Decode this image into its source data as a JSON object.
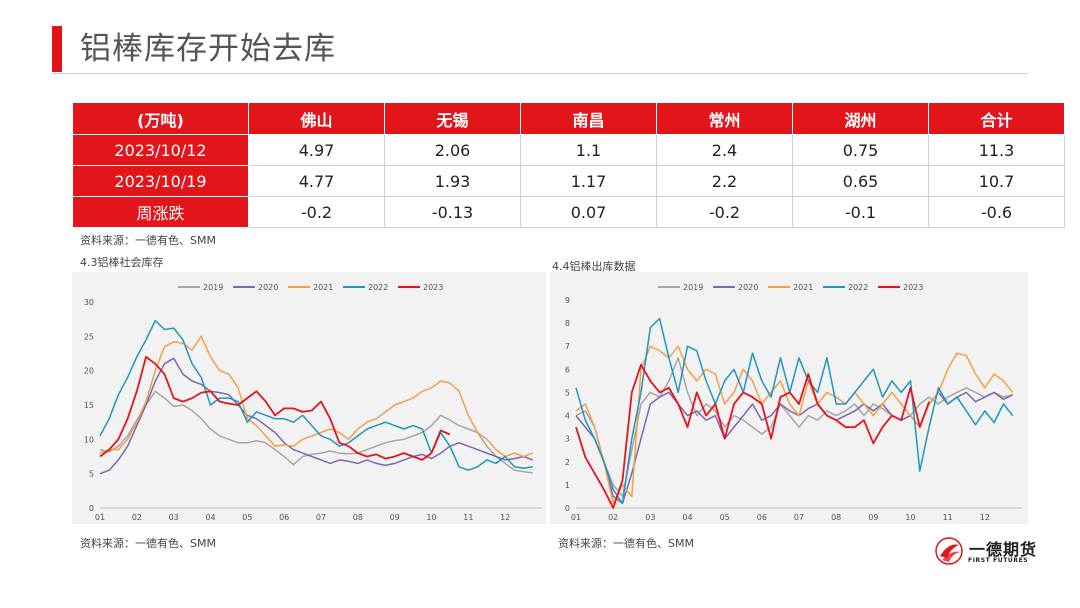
{
  "page": {
    "title": "铝棒库存开始去库"
  },
  "table": {
    "headers": [
      "(万吨)",
      "佛山",
      "无锡",
      "南昌",
      "常州",
      "湖州",
      "合计"
    ],
    "rows": [
      [
        "2023/10/12",
        "4.97",
        "2.06",
        "1.1",
        "2.4",
        "0.75",
        "11.3"
      ],
      [
        "2023/10/19",
        "4.77",
        "1.93",
        "1.17",
        "2.2",
        "0.65",
        "10.7"
      ],
      [
        "周涨跌",
        "-0.2",
        "-0.13",
        "0.07",
        "-0.2",
        "-0.1",
        "-0.6"
      ]
    ]
  },
  "source_text": "资料来源：一德有色、SMM",
  "logo": {
    "name": "一德期货",
    "sub": "FIRST FUTURES"
  },
  "colors": {
    "accent": "#e4141b",
    "2019": "#a6a6a6",
    "2020": "#7b68b0",
    "2021": "#f0a04b",
    "2022": "#1f96c0",
    "2023": "#e4141b"
  },
  "chart_data": [
    {
      "type": "line",
      "title": "4.3铝棒社会库存",
      "xlabel": "",
      "ylabel": "",
      "x_ticks": [
        "01",
        "02",
        "03",
        "04",
        "05",
        "06",
        "07",
        "08",
        "09",
        "10",
        "11",
        "12"
      ],
      "xlim": [
        1,
        13
      ],
      "ylim": [
        0,
        30
      ],
      "y_ticks": [
        0,
        5,
        10,
        15,
        20,
        25,
        30
      ],
      "legend_position": "top",
      "series": [
        {
          "name": "2019",
          "x": [
            1.0,
            1.25,
            1.5,
            1.75,
            2.0,
            2.25,
            2.5,
            2.75,
            3.0,
            3.25,
            3.5,
            3.75,
            4.0,
            4.25,
            4.5,
            4.75,
            5.0,
            5.25,
            5.5,
            5.75,
            6.0,
            6.25,
            6.5,
            6.75,
            7.0,
            7.25,
            7.5,
            7.75,
            8.0,
            8.25,
            8.5,
            8.75,
            9.0,
            9.25,
            9.5,
            9.75,
            10.0,
            10.25,
            10.5,
            10.75,
            11.0,
            11.25,
            11.5,
            11.75,
            12.0,
            12.25,
            12.5,
            12.75
          ],
          "values": [
            8.5,
            8.2,
            9.0,
            10.5,
            12.8,
            15.0,
            17.0,
            16.0,
            14.8,
            15.0,
            14.2,
            13.0,
            11.5,
            10.5,
            10.0,
            9.5,
            9.5,
            9.8,
            9.5,
            8.5,
            7.5,
            6.3,
            7.5,
            7.8,
            8.0,
            8.3,
            8.0,
            7.9,
            8.0,
            8.5,
            9.0,
            9.5,
            9.8,
            10.0,
            10.5,
            11.0,
            12.0,
            13.5,
            12.8,
            12.0,
            11.5,
            11.0,
            9.0,
            7.5,
            6.5,
            5.5,
            5.3,
            5.1
          ]
        },
        {
          "name": "2020",
          "x": [
            1.0,
            1.25,
            1.5,
            1.75,
            2.0,
            2.25,
            2.5,
            2.75,
            3.0,
            3.25,
            3.5,
            3.75,
            4.0,
            4.25,
            4.5,
            4.75,
            5.0,
            5.25,
            5.5,
            5.75,
            6.0,
            6.25,
            6.5,
            6.75,
            7.0,
            7.25,
            7.5,
            7.75,
            8.0,
            8.25,
            8.5,
            8.75,
            9.0,
            9.25,
            9.5,
            9.75,
            10.0,
            10.25,
            10.5,
            10.75,
            11.0,
            11.25,
            11.5,
            11.75,
            12.0,
            12.25,
            12.5,
            12.75
          ],
          "values": [
            5.0,
            5.5,
            7.0,
            9.0,
            12.0,
            15.0,
            18.5,
            21.0,
            21.8,
            19.5,
            18.5,
            18.0,
            17.0,
            16.8,
            16.5,
            15.0,
            13.5,
            13.0,
            12.0,
            11.0,
            9.5,
            8.5,
            8.0,
            7.5,
            7.0,
            6.5,
            7.0,
            6.8,
            6.5,
            7.0,
            6.5,
            6.2,
            6.5,
            7.0,
            7.5,
            7.8,
            7.2,
            8.0,
            9.0,
            9.5,
            9.0,
            8.5,
            8.0,
            7.5,
            7.0,
            7.2,
            7.5,
            7.0
          ]
        },
        {
          "name": "2021",
          "x": [
            1.0,
            1.25,
            1.5,
            1.75,
            2.0,
            2.25,
            2.5,
            2.75,
            3.0,
            3.25,
            3.5,
            3.75,
            4.0,
            4.25,
            4.5,
            4.75,
            5.0,
            5.25,
            5.5,
            5.75,
            6.0,
            6.25,
            6.5,
            6.75,
            7.0,
            7.25,
            7.5,
            7.75,
            8.0,
            8.25,
            8.5,
            8.75,
            9.0,
            9.25,
            9.5,
            9.75,
            10.0,
            10.25,
            10.5,
            10.75,
            11.0,
            11.25,
            11.5,
            11.75,
            12.0,
            12.25,
            12.5,
            12.75
          ],
          "values": [
            8.0,
            8.5,
            8.5,
            10.0,
            12.5,
            15.5,
            20.0,
            23.5,
            24.2,
            24.0,
            23.0,
            25.0,
            22.0,
            20.0,
            19.5,
            17.5,
            13.0,
            12.0,
            10.5,
            9.0,
            9.2,
            9.0,
            10.0,
            10.5,
            11.0,
            11.5,
            11.0,
            10.0,
            11.5,
            12.5,
            13.0,
            14.0,
            15.0,
            15.5,
            16.0,
            17.0,
            17.5,
            18.5,
            18.2,
            17.0,
            13.5,
            11.0,
            10.0,
            8.5,
            7.5,
            8.0,
            7.5,
            8.0
          ]
        },
        {
          "name": "2022",
          "x": [
            1.0,
            1.25,
            1.5,
            1.75,
            2.0,
            2.25,
            2.5,
            2.75,
            3.0,
            3.25,
            3.5,
            3.75,
            4.0,
            4.25,
            4.5,
            4.75,
            5.0,
            5.25,
            5.5,
            5.75,
            6.0,
            6.25,
            6.5,
            6.75,
            7.0,
            7.25,
            7.5,
            7.75,
            8.0,
            8.25,
            8.5,
            8.75,
            9.0,
            9.25,
            9.5,
            9.75,
            10.0,
            10.25,
            10.5,
            10.75,
            11.0,
            11.25,
            11.5,
            11.75,
            12.0,
            12.25,
            12.5,
            12.75
          ],
          "values": [
            10.5,
            13.0,
            16.5,
            19.0,
            22.0,
            24.5,
            27.3,
            26.0,
            26.2,
            24.5,
            21.0,
            19.0,
            15.0,
            16.0,
            16.0,
            15.5,
            12.5,
            14.0,
            13.5,
            13.0,
            13.0,
            12.5,
            13.5,
            12.0,
            10.5,
            10.0,
            9.0,
            9.5,
            10.5,
            11.5,
            12.0,
            12.5,
            12.0,
            11.5,
            12.0,
            11.5,
            8.0,
            11.0,
            9.0,
            6.0,
            5.5,
            6.0,
            7.0,
            6.5,
            7.5,
            6.0,
            5.8,
            6.0
          ]
        },
        {
          "name": "2023",
          "x": [
            1.0,
            1.25,
            1.5,
            1.75,
            2.0,
            2.25,
            2.5,
            2.75,
            3.0,
            3.25,
            3.5,
            3.75,
            4.0,
            4.25,
            4.5,
            4.75,
            5.0,
            5.25,
            5.5,
            5.75,
            6.0,
            6.25,
            6.5,
            6.75,
            7.0,
            7.25,
            7.5,
            7.75,
            8.0,
            8.25,
            8.5,
            8.75,
            9.0,
            9.25,
            9.5,
            9.75,
            10.0,
            10.25,
            10.5
          ],
          "values": [
            7.5,
            8.5,
            10.0,
            13.0,
            17.0,
            22.0,
            21.0,
            19.5,
            16.0,
            15.5,
            16.0,
            16.8,
            17.0,
            15.5,
            15.2,
            15.0,
            16.0,
            17.0,
            15.5,
            13.5,
            14.5,
            14.5,
            14.0,
            14.2,
            15.5,
            13.0,
            9.5,
            9.0,
            8.0,
            7.5,
            7.8,
            7.2,
            7.5,
            8.0,
            7.5,
            7.0,
            8.0,
            11.3,
            10.7
          ]
        }
      ]
    },
    {
      "type": "line",
      "title": "4.4铝棒出库数据",
      "xlabel": "",
      "ylabel": "",
      "x_ticks": [
        "01",
        "02",
        "03",
        "04",
        "05",
        "06",
        "07",
        "08",
        "09",
        "10",
        "11",
        "12"
      ],
      "xlim": [
        1,
        13
      ],
      "ylim": [
        0,
        9
      ],
      "y_ticks": [
        0,
        1,
        2,
        3,
        4,
        5,
        6,
        7,
        8,
        9
      ],
      "legend_position": "top",
      "series": [
        {
          "name": "2019",
          "x": [
            1.0,
            1.25,
            1.5,
            1.75,
            2.0,
            2.25,
            2.5,
            2.75,
            3.0,
            3.25,
            3.5,
            3.75,
            4.0,
            4.25,
            4.5,
            4.75,
            5.0,
            5.25,
            5.5,
            5.75,
            6.0,
            6.25,
            6.5,
            6.75,
            7.0,
            7.25,
            7.5,
            7.75,
            8.0,
            8.25,
            8.5,
            8.75,
            9.0,
            9.25,
            9.5,
            9.75,
            10.0,
            10.25,
            10.5,
            10.75,
            11.0,
            11.25,
            11.5,
            11.75,
            12.0,
            12.25,
            12.5,
            12.75
          ],
          "values": [
            4.0,
            4.2,
            3.5,
            2.0,
            1.0,
            0.5,
            2.5,
            4.5,
            5.0,
            4.8,
            5.5,
            6.5,
            5.0,
            4.0,
            4.5,
            4.2,
            3.5,
            4.0,
            3.8,
            3.5,
            3.2,
            3.5,
            4.5,
            4.0,
            3.5,
            4.0,
            3.8,
            4.2,
            4.0,
            4.2,
            4.5,
            4.0,
            4.5,
            4.3,
            4.0,
            3.8,
            4.0,
            4.5,
            4.8,
            4.5,
            4.8,
            5.0,
            5.2,
            5.0,
            4.8,
            5.0,
            4.8,
            4.9
          ]
        },
        {
          "name": "2020",
          "x": [
            1.0,
            1.25,
            1.5,
            1.75,
            2.0,
            2.25,
            2.5,
            2.75,
            3.0,
            3.25,
            3.5,
            3.75,
            4.0,
            4.25,
            4.5,
            4.75,
            5.0,
            5.25,
            5.5,
            5.75,
            6.0,
            6.25,
            6.5,
            6.75,
            7.0,
            7.25,
            7.5,
            7.75,
            8.0,
            8.25,
            8.5,
            8.75,
            9.0,
            9.25,
            9.5,
            9.75,
            10.0,
            10.25,
            10.5,
            10.75,
            11.0,
            11.25,
            11.5,
            11.75,
            12.0,
            12.25,
            12.5,
            12.75
          ],
          "values": [
            4.0,
            3.5,
            3.0,
            2.0,
            0.5,
            0.2,
            1.5,
            3.0,
            4.5,
            4.8,
            5.0,
            4.5,
            4.0,
            4.2,
            3.8,
            4.0,
            3.0,
            3.5,
            4.0,
            4.5,
            3.8,
            4.0,
            4.5,
            4.2,
            4.0,
            4.3,
            4.5,
            4.0,
            3.8,
            4.0,
            4.2,
            4.5,
            4.2,
            4.5,
            4.0,
            3.8,
            4.0,
            3.5,
            4.5,
            5.0,
            4.5,
            4.8,
            5.0,
            4.6,
            4.8,
            5.0,
            4.7,
            4.9
          ]
        },
        {
          "name": "2021",
          "x": [
            1.0,
            1.25,
            1.5,
            1.75,
            2.0,
            2.25,
            2.5,
            2.75,
            3.0,
            3.25,
            3.5,
            3.75,
            4.0,
            4.25,
            4.5,
            4.75,
            5.0,
            5.25,
            5.5,
            5.75,
            6.0,
            6.25,
            6.5,
            6.75,
            7.0,
            7.25,
            7.5,
            7.75,
            8.0,
            8.25,
            8.5,
            8.75,
            9.0,
            9.25,
            9.5,
            9.75,
            10.0,
            10.25,
            10.5,
            10.75,
            11.0,
            11.25,
            11.5,
            11.75,
            12.0,
            12.25,
            12.5,
            12.75
          ],
          "values": [
            4.2,
            4.5,
            3.5,
            2.0,
            0.2,
            1.0,
            0.5,
            6.0,
            7.0,
            6.8,
            6.5,
            7.0,
            6.0,
            5.5,
            6.0,
            5.8,
            4.5,
            5.0,
            6.0,
            5.5,
            4.5,
            5.0,
            5.5,
            4.5,
            4.0,
            5.5,
            4.5,
            5.0,
            4.8,
            4.5,
            5.0,
            4.5,
            4.0,
            4.5,
            5.0,
            4.5,
            4.0,
            3.5,
            4.5,
            5.0,
            6.0,
            6.7,
            6.6,
            5.8,
            5.2,
            5.8,
            5.5,
            5.0
          ]
        },
        {
          "name": "2022",
          "x": [
            1.0,
            1.25,
            1.5,
            1.75,
            2.0,
            2.25,
            2.5,
            2.75,
            3.0,
            3.25,
            3.5,
            3.75,
            4.0,
            4.25,
            4.5,
            4.75,
            5.0,
            5.25,
            5.5,
            5.75,
            6.0,
            6.25,
            6.5,
            6.75,
            7.0,
            7.25,
            7.5,
            7.75,
            8.0,
            8.25,
            8.5,
            8.75,
            9.0,
            9.25,
            9.5,
            9.75,
            10.0,
            10.25,
            10.5,
            10.75,
            11.0,
            11.25,
            11.5,
            11.75,
            12.0,
            12.25,
            12.5,
            12.75
          ],
          "values": [
            5.2,
            3.8,
            3.0,
            2.0,
            0.8,
            0.2,
            3.0,
            5.0,
            7.8,
            8.2,
            6.5,
            5.0,
            7.0,
            6.8,
            5.5,
            4.5,
            5.5,
            6.0,
            5.0,
            6.7,
            5.5,
            4.8,
            6.5,
            5.0,
            6.5,
            5.5,
            5.0,
            6.5,
            4.5,
            4.5,
            5.0,
            5.5,
            6.0,
            4.8,
            5.5,
            5.0,
            5.5,
            1.6,
            3.5,
            5.2,
            4.5,
            4.8,
            4.2,
            3.6,
            4.2,
            3.7,
            4.5,
            4.0
          ]
        },
        {
          "name": "2023",
          "x": [
            1.0,
            1.25,
            1.5,
            1.75,
            2.0,
            2.25,
            2.5,
            2.75,
            3.0,
            3.25,
            3.5,
            3.75,
            4.0,
            4.25,
            4.5,
            4.75,
            5.0,
            5.25,
            5.5,
            5.75,
            6.0,
            6.25,
            6.5,
            6.75,
            7.0,
            7.25,
            7.5,
            7.75,
            8.0,
            8.25,
            8.5,
            8.75,
            9.0,
            9.25,
            9.5,
            9.75,
            10.0,
            10.25,
            10.5
          ],
          "values": [
            3.5,
            2.2,
            1.5,
            0.8,
            0.0,
            1.2,
            5.0,
            6.2,
            5.5,
            5.0,
            5.2,
            4.5,
            3.5,
            5.0,
            4.0,
            4.5,
            3.0,
            4.5,
            5.0,
            4.8,
            4.5,
            3.0,
            4.8,
            5.0,
            4.5,
            5.8,
            4.5,
            4.0,
            3.8,
            3.5,
            3.5,
            3.8,
            2.8,
            3.5,
            4.0,
            3.8,
            5.2,
            3.5,
            4.6
          ]
        }
      ]
    }
  ]
}
